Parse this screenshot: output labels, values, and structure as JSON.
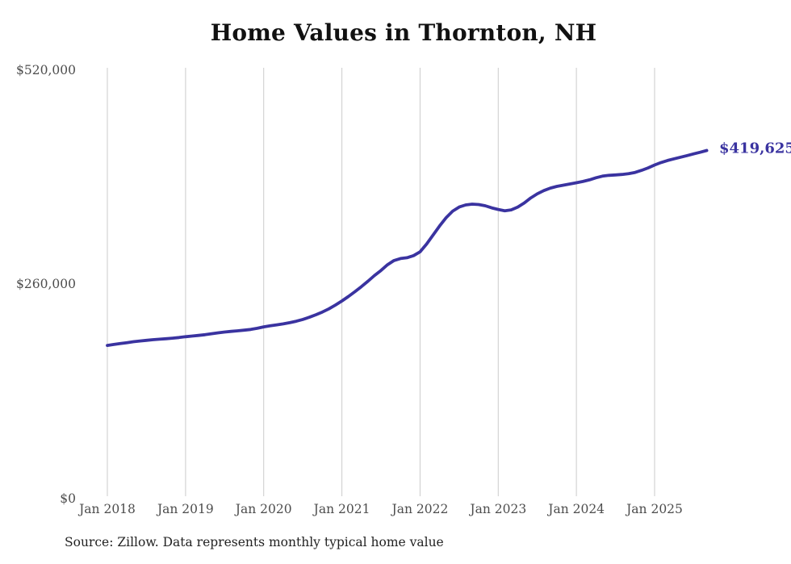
{
  "title": "Home Values in Thornton, NH",
  "source_note": "Source: Zillow. Data represents monthly typical home value",
  "colors": {
    "background": "#ffffff",
    "line": "#3a33a0",
    "grid": "#cbcbcb",
    "tick_text": "#4d4d4d",
    "title_text": "#111111",
    "source_text": "#222222"
  },
  "chart_data": {
    "type": "line",
    "title": "Home Values in Thornton, NH",
    "xlabel": "",
    "ylabel": "",
    "x_unit": "month",
    "start_month": "2018-01",
    "end_month": "2025-09",
    "grid": "vertical-only",
    "legend": "none",
    "ylim": [
      0,
      520000
    ],
    "y_ticks": [
      {
        "label": "$520,000",
        "value": 520000
      },
      {
        "label": "$260,000",
        "value": 260000
      },
      {
        "label": "$0",
        "value": 0
      }
    ],
    "x_tick_labels": [
      "Jan 2018",
      "Jan 2019",
      "Jan 2020",
      "Jan 2021",
      "Jan 2022",
      "Jan 2023",
      "Jan 2024",
      "Jan 2025"
    ],
    "last_value": 419625,
    "last_value_label": "$419,625",
    "series": [
      {
        "name": "Monthly typical home value",
        "color": "#3a33a0",
        "values": [
          183000,
          184200,
          185300,
          186400,
          187500,
          188400,
          189200,
          190000,
          190600,
          191200,
          191800,
          192600,
          193600,
          194400,
          195200,
          196100,
          197200,
          198300,
          199300,
          200100,
          200800,
          201500,
          202400,
          203800,
          205600,
          206800,
          208000,
          209200,
          210600,
          212400,
          214600,
          217200,
          220200,
          223600,
          227400,
          232000,
          237000,
          242400,
          248200,
          254400,
          261000,
          267800,
          274000,
          281000,
          286000,
          288500,
          289500,
          292000,
          296600,
          306000,
          317000,
          328000,
          338000,
          346000,
          351000,
          353500,
          354500,
          354000,
          352500,
          350000,
          348000,
          346500,
          347500,
          351000,
          356000,
          362000,
          367000,
          371000,
          374000,
          376000,
          377500,
          379000,
          380500,
          382000,
          384000,
          386500,
          388500,
          389500,
          390000,
          390500,
          391500,
          393000,
          395500,
          398500,
          402000,
          405000,
          407500,
          409500,
          411500,
          413500,
          415500,
          417500,
          419625
        ]
      }
    ]
  }
}
